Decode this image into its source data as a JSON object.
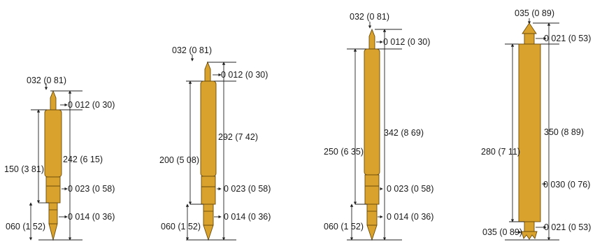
{
  "pins": [
    {
      "id": "pin-1",
      "tip_dia": "032 (0 81)",
      "neck_dia": "0 012 (0 30)",
      "overall_len": "242 (6 15)",
      "barrel_len": "150 (3 81)",
      "barrel_dia": "0 023 (0 58)",
      "tail_dia": "0 014 (0 36)",
      "tail_len": "060 (1 52)"
    },
    {
      "id": "pin-2",
      "tip_dia": "032 (0 81)",
      "neck_dia": "0 012 (0 30)",
      "overall_len": "292 (7 42)",
      "barrel_len": "200 (5 08)",
      "barrel_dia": "0 023 (0 58)",
      "tail_dia": "0 014 (0 36)",
      "tail_len": "060 (1 52)"
    },
    {
      "id": "pin-3",
      "tip_dia": "032 (0 81)",
      "neck_dia": "0 012 (0 30)",
      "overall_len": "342 (8 69)",
      "barrel_len": "250 (6 35)",
      "barrel_dia": "0 023 (0 58)",
      "tail_dia": "0 014 (0 36)",
      "tail_len": "060 (1 52)"
    },
    {
      "id": "pin-4",
      "tip_dia": "035 (0 89)",
      "neck_dia": "0 021 (0 53)",
      "overall_len": "350 (8 89)",
      "barrel_len": "280 (7 11)",
      "barrel_dia": "0 030 (0 76)",
      "tail_dia": "0 021 (0 53)",
      "bottom_dia": "035 (0 89)"
    }
  ],
  "colors": {
    "gold": "#d9a22c",
    "outline": "#6a4a0a",
    "line": "#222222"
  }
}
